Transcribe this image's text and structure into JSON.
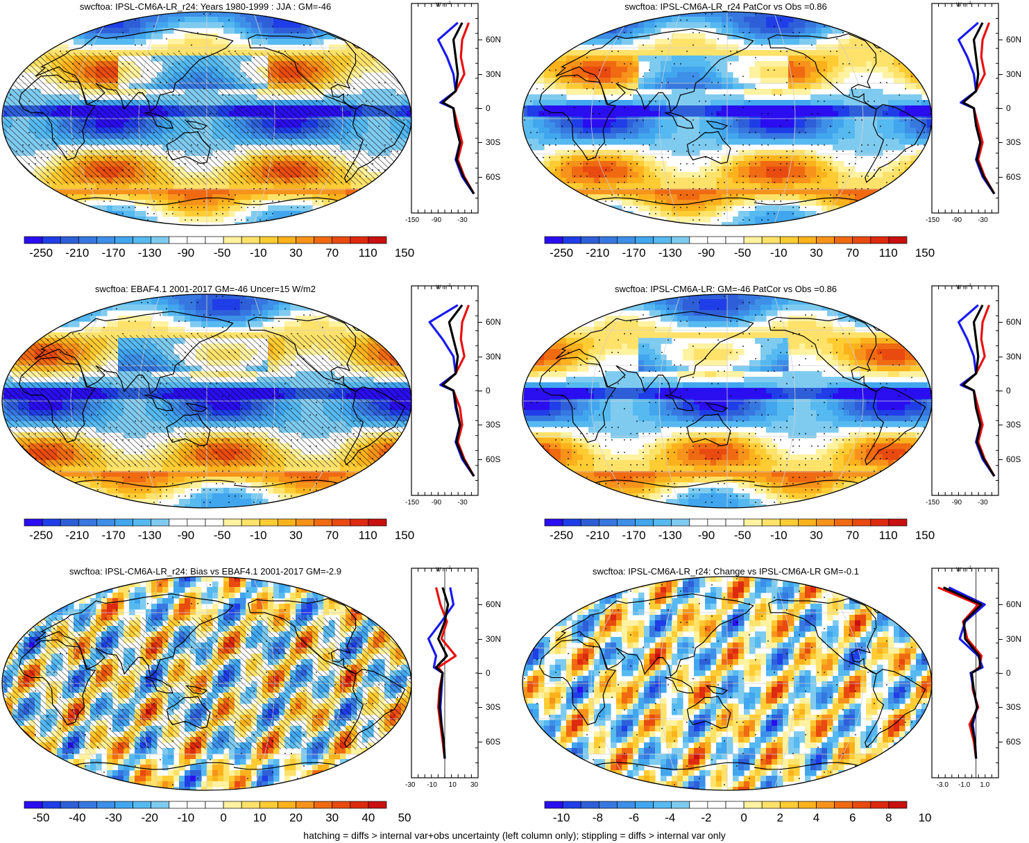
{
  "footer": "hatching = diffs > internal var+obs uncertainty (left column only); stippling = diffs > internal var only",
  "unit_label": "W m",
  "lat_labels": [
    "60N",
    "30N",
    "0",
    "30S",
    "60S"
  ],
  "colors": {
    "main_scale": [
      "#2a0ef0",
      "#1f3ee8",
      "#2e5fd8",
      "#3777e0",
      "#3d8fe8",
      "#41a6ee",
      "#56b9f0",
      "#7fcbf0",
      "#ffffff",
      "#ffffff",
      "#fff2a0",
      "#ffe26a",
      "#ffcc33",
      "#fbb21d",
      "#f7931a",
      "#f06a12",
      "#e84a10",
      "#dd2a10",
      "#c81010"
    ],
    "diff_scale": [
      "#2a0ef0",
      "#1f3ee8",
      "#2e5fd8",
      "#3777e0",
      "#3d8fe8",
      "#41a6ee",
      "#56b9f0",
      "#7fcbf0",
      "#ffffff",
      "#ffffff",
      "#fff2a0",
      "#ffe26a",
      "#ffcc33",
      "#fbb21d",
      "#f7931a",
      "#f06a12",
      "#e84a10",
      "#dd2a10",
      "#c81010"
    ],
    "profile_model": "#e81010",
    "profile_obs": "#1a1aee",
    "profile_mean": "#000000"
  },
  "chart_data": [
    {
      "type": "heatmap",
      "title": "swcftoa: IPSL-CM6A-LR_r24: Years 1980-1999 : JJA : GM=-46",
      "colorbar_labels": [
        "-250",
        "-210",
        "-170",
        "-130",
        "-90",
        "-50",
        "-10",
        "30",
        "70",
        "110",
        "150"
      ],
      "profile_ticks": [
        "-150",
        "-90",
        "-30"
      ],
      "profile": {
        "xlim": [
          -150,
          0
        ],
        "lat": [
          75,
          60,
          45,
          30,
          15,
          5,
          0,
          -15,
          -30,
          -45,
          -60,
          -75
        ],
        "series": [
          {
            "values": [
              -20,
              -35,
              -38,
              -30,
              -50,
              -80,
              -55,
              -45,
              -35,
              -45,
              -30,
              -8
            ]
          },
          {
            "values": [
              -45,
              -90,
              -70,
              -55,
              -50,
              -85,
              -55,
              -50,
              -40,
              -50,
              -35,
              -8
            ]
          },
          {
            "values": [
              -35,
              -55,
              -50,
              -45,
              -50,
              -80,
              -55,
              -50,
              -40,
              -48,
              -32,
              -8
            ]
          }
        ]
      }
    },
    {
      "type": "heatmap",
      "title": "swcftoa: IPSL-CM6A-LR_r24 PatCor vs Obs =0.86",
      "colorbar_labels": [
        "-250",
        "-210",
        "-170",
        "-130",
        "-90",
        "-50",
        "-10",
        "30",
        "70",
        "110",
        "150"
      ],
      "profile_ticks": [
        "-150",
        "-90",
        "-30"
      ],
      "profile": {
        "xlim": [
          -150,
          0
        ],
        "lat": [
          75,
          60,
          45,
          30,
          15,
          5,
          0,
          -15,
          -30,
          -45,
          -60,
          -75
        ],
        "series": [
          {
            "values": [
              -20,
              -35,
              -38,
              -30,
              -50,
              -80,
              -55,
              -45,
              -35,
              -45,
              -30,
              -8
            ]
          },
          {
            "values": [
              -45,
              -90,
              -70,
              -55,
              -50,
              -85,
              -55,
              -50,
              -40,
              -50,
              -35,
              -8
            ]
          },
          {
            "values": [
              -35,
              -55,
              -50,
              -45,
              -50,
              -80,
              -55,
              -50,
              -40,
              -48,
              -32,
              -8
            ]
          }
        ]
      }
    },
    {
      "type": "heatmap",
      "title": "swcftoa: EBAF4.1 2001-2017 GM=-46 Uncer=15 W/m2",
      "colorbar_labels": [
        "-250",
        "-210",
        "-170",
        "-130",
        "-90",
        "-50",
        "-10",
        "30",
        "70",
        "110",
        "150"
      ],
      "profile_ticks": [
        "-150",
        "-90",
        "-30"
      ],
      "profile": {
        "xlim": [
          -150,
          0
        ],
        "lat": [
          75,
          60,
          45,
          30,
          15,
          5,
          0,
          -15,
          -30,
          -45,
          -60,
          -75
        ],
        "series": [
          {
            "values": [
              -20,
              -35,
              -38,
              -30,
              -50,
              -80,
              -55,
              -40,
              -35,
              -45,
              -30,
              -8
            ]
          },
          {
            "values": [
              -45,
              -110,
              -80,
              -55,
              -50,
              -85,
              -55,
              -50,
              -40,
              -50,
              -35,
              -8
            ]
          },
          {
            "values": [
              -35,
              -65,
              -55,
              -45,
              -50,
              -80,
              -55,
              -48,
              -40,
              -48,
              -32,
              -8
            ]
          }
        ]
      }
    },
    {
      "type": "heatmap",
      "title": "swcftoa: IPSL-CM6A-LR: GM=-46 PatCor vs Obs =0.86",
      "colorbar_labels": [
        "-250",
        "-210",
        "-170",
        "-130",
        "-90",
        "-50",
        "-10",
        "30",
        "70",
        "110",
        "150"
      ],
      "profile_ticks": [
        "-150",
        "-90",
        "-30"
      ],
      "profile": {
        "xlim": [
          -150,
          0
        ],
        "lat": [
          75,
          60,
          45,
          30,
          15,
          5,
          0,
          -15,
          -30,
          -45,
          -60,
          -75
        ],
        "series": [
          {
            "values": [
              -20,
              -35,
              -38,
              -30,
              -50,
              -80,
              -55,
              -45,
              -35,
              -45,
              -30,
              -8
            ]
          },
          {
            "values": [
              -45,
              -90,
              -70,
              -55,
              -50,
              -85,
              -55,
              -50,
              -40,
              -50,
              -35,
              -8
            ]
          },
          {
            "values": [
              -35,
              -55,
              -50,
              -45,
              -50,
              -80,
              -55,
              -50,
              -40,
              -48,
              -32,
              -8
            ]
          }
        ]
      }
    },
    {
      "type": "heatmap",
      "title": "swcftoa: IPSL-CM6A-LR_r24: Bias vs EBAF4.1 2001-2017 GM=-2.9",
      "colorbar_labels": [
        "-50",
        "-40",
        "-30",
        "-20",
        "-10",
        "0",
        "10",
        "20",
        "30",
        "40",
        "50"
      ],
      "profile_ticks": [
        "-30",
        "-10",
        "10",
        "30"
      ],
      "profile": {
        "xlim": [
          -30,
          30
        ],
        "lat": [
          75,
          60,
          45,
          30,
          15,
          5,
          0,
          -15,
          -30,
          -45,
          -60,
          -75
        ],
        "series": [
          {
            "values": [
              -8,
              -4,
              2,
              -3,
              10,
              -6,
              -2,
              -5,
              -6,
              -4,
              -2,
              0
            ]
          },
          {
            "values": [
              5,
              8,
              -3,
              -15,
              -8,
              -10,
              -2,
              -3,
              -4,
              -3,
              -1,
              0
            ]
          },
          {
            "values": [
              -2,
              3,
              0,
              -6,
              2,
              -8,
              -2,
              -4,
              -5,
              -3,
              -1,
              0
            ]
          }
        ]
      }
    },
    {
      "type": "heatmap",
      "title": "swcftoa: IPSL-CM6A-LR_r24: Change vs IPSL-CM6A-LR GM=-0.1",
      "colorbar_labels": [
        "-10",
        "-8",
        "-6",
        "-4",
        "-2",
        "0",
        "2",
        "4",
        "6",
        "8",
        "10"
      ],
      "profile_ticks": [
        "-3.0",
        "-1.0",
        "1.0"
      ],
      "profile": {
        "xlim": [
          -4,
          2
        ],
        "lat": [
          75,
          60,
          45,
          30,
          15,
          5,
          0,
          -15,
          -30,
          -45,
          -60,
          -75
        ],
        "series": [
          {
            "values": [
              -3.5,
              0.2,
              -1.2,
              -0.8,
              0.5,
              0.3,
              -0.4,
              -0.3,
              0.2,
              -0.6,
              -0.2,
              0
            ]
          },
          {
            "values": [
              -2.5,
              0.8,
              -1.0,
              -1.5,
              0.2,
              0.6,
              -0.5,
              -0.2,
              0.1,
              -0.3,
              -0.1,
              0
            ]
          },
          {
            "values": [
              -3.0,
              0.5,
              -1.1,
              -1.0,
              0.3,
              0.4,
              -0.4,
              -0.2,
              0.1,
              -0.4,
              -0.1,
              0
            ]
          }
        ]
      }
    }
  ]
}
